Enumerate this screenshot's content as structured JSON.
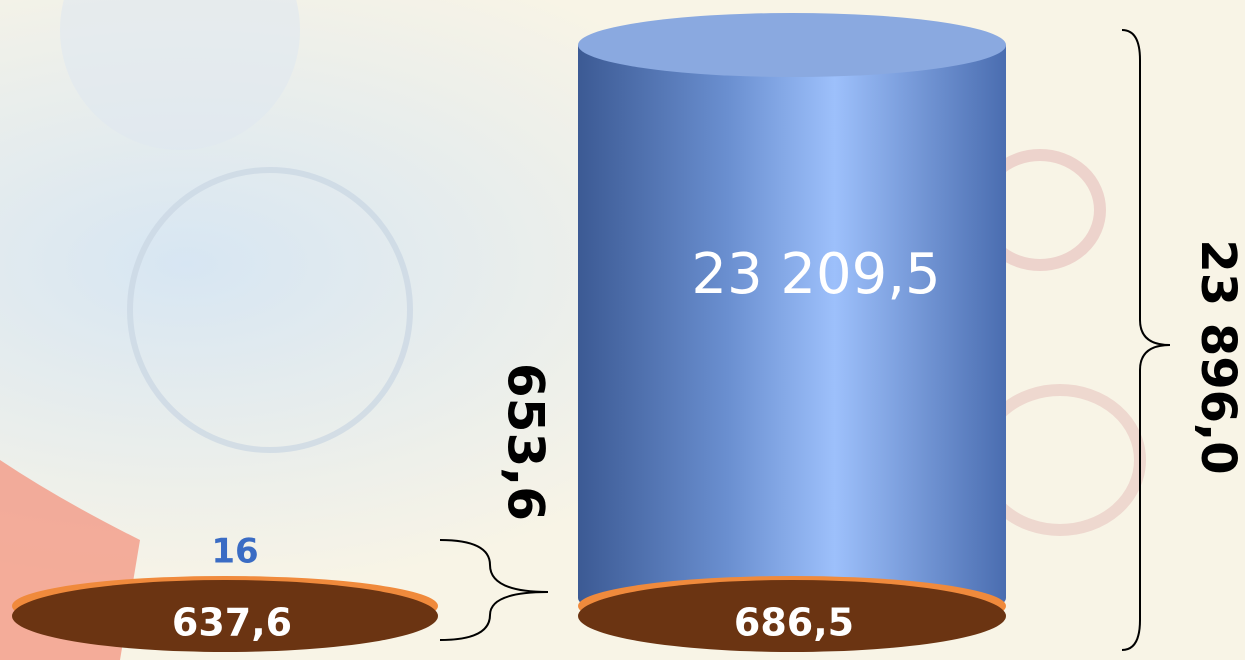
{
  "left_stack": {
    "top_label": "16",
    "base_label": "637,6",
    "total_label": "653,6"
  },
  "right_stack": {
    "cylinder_label": "23 209,5",
    "base_label": "686,5",
    "total_label": "23 896,0"
  }
}
